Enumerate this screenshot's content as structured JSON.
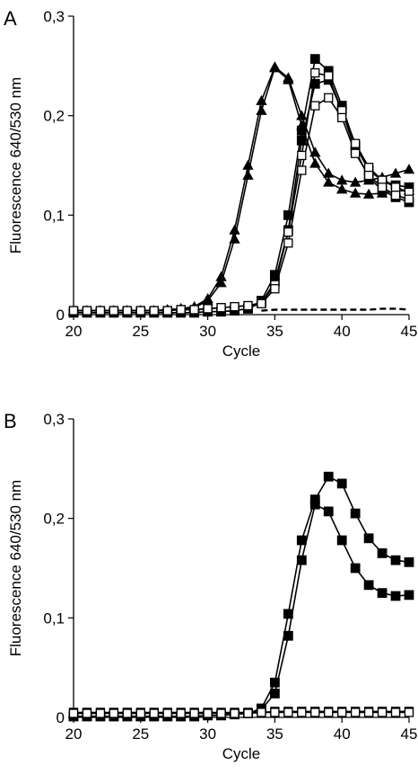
{
  "chart_data": [
    {
      "type": "line",
      "panel_label": "A",
      "xlabel": "Cycle",
      "ylabel": "Fluorescence 640/530 nm",
      "xlim": [
        20,
        45
      ],
      "ylim": [
        0,
        0.3
      ],
      "x_ticks": [
        20,
        25,
        30,
        35,
        40,
        45
      ],
      "x_tick_labels": [
        "20",
        "25",
        "30",
        "35",
        "40",
        "45"
      ],
      "y_ticks": [
        0,
        0.1,
        0.2,
        0.3
      ],
      "y_tick_labels": [
        "0",
        "0,1",
        "0,2",
        "0,3"
      ],
      "grid": false,
      "series": [
        {
          "marker": "triangle-filled",
          "color": "#000000",
          "x": [
            20,
            21,
            22,
            23,
            24,
            25,
            26,
            27,
            28,
            29,
            30,
            31,
            32,
            33,
            34,
            35,
            36,
            37,
            38,
            39,
            40,
            41,
            42,
            43,
            44,
            45
          ],
          "y": [
            0.004,
            0.004,
            0.004,
            0.004,
            0.004,
            0.004,
            0.004,
            0.005,
            0.006,
            0.008,
            0.016,
            0.038,
            0.085,
            0.15,
            0.215,
            0.249,
            0.238,
            0.2,
            0.163,
            0.142,
            0.135,
            0.133,
            0.135,
            0.138,
            0.142,
            0.146
          ]
        },
        {
          "marker": "triangle-filled",
          "color": "#000000",
          "x": [
            20,
            21,
            22,
            23,
            24,
            25,
            26,
            27,
            28,
            29,
            30,
            31,
            32,
            33,
            34,
            35,
            36,
            37,
            38,
            39,
            40,
            41,
            42,
            43,
            44,
            45
          ],
          "y": [
            0.004,
            0.004,
            0.004,
            0.004,
            0.004,
            0.004,
            0.004,
            0.005,
            0.006,
            0.007,
            0.014,
            0.032,
            0.076,
            0.14,
            0.205,
            0.248,
            0.236,
            0.19,
            0.152,
            0.133,
            0.126,
            0.122,
            0.121,
            0.122,
            0.124,
            0.125
          ]
        },
        {
          "marker": "square-filled",
          "color": "#000000",
          "x": [
            20,
            21,
            22,
            23,
            24,
            25,
            26,
            27,
            28,
            29,
            30,
            31,
            32,
            33,
            34,
            35,
            36,
            37,
            38,
            39,
            40,
            41,
            42,
            43,
            44,
            45
          ],
          "y": [
            0.002,
            0.002,
            0.002,
            0.002,
            0.002,
            0.002,
            0.002,
            0.002,
            0.002,
            0.002,
            0.003,
            0.003,
            0.004,
            0.006,
            0.014,
            0.04,
            0.1,
            0.185,
            0.257,
            0.245,
            0.21,
            0.17,
            0.145,
            0.135,
            0.13,
            0.128
          ]
        },
        {
          "marker": "square-filled",
          "color": "#000000",
          "x": [
            20,
            21,
            22,
            23,
            24,
            25,
            26,
            27,
            28,
            29,
            30,
            31,
            32,
            33,
            34,
            35,
            36,
            37,
            38,
            39,
            40,
            41,
            42,
            43,
            44,
            45
          ],
          "y": [
            0.002,
            0.002,
            0.002,
            0.002,
            0.002,
            0.002,
            0.002,
            0.002,
            0.002,
            0.002,
            0.003,
            0.003,
            0.004,
            0.006,
            0.012,
            0.033,
            0.085,
            0.175,
            0.232,
            0.236,
            0.205,
            0.165,
            0.138,
            0.125,
            0.118,
            0.113
          ]
        },
        {
          "marker": "square-open",
          "color": "#000000",
          "x": [
            20,
            21,
            22,
            23,
            24,
            25,
            26,
            27,
            28,
            29,
            30,
            31,
            32,
            33,
            34,
            35,
            36,
            37,
            38,
            39,
            40,
            41,
            42,
            43,
            44,
            45
          ],
          "y": [
            0.004,
            0.004,
            0.004,
            0.004,
            0.004,
            0.004,
            0.004,
            0.004,
            0.005,
            0.005,
            0.006,
            0.007,
            0.008,
            0.009,
            0.012,
            0.03,
            0.083,
            0.16,
            0.243,
            0.24,
            0.205,
            0.172,
            0.148,
            0.135,
            0.128,
            0.123
          ]
        },
        {
          "marker": "square-open",
          "color": "#000000",
          "x": [
            20,
            21,
            22,
            23,
            24,
            25,
            26,
            27,
            28,
            29,
            30,
            31,
            32,
            33,
            34,
            35,
            36,
            37,
            38,
            39,
            40,
            41,
            42,
            43,
            44,
            45
          ],
          "y": [
            0.004,
            0.004,
            0.004,
            0.004,
            0.004,
            0.004,
            0.004,
            0.004,
            0.005,
            0.005,
            0.006,
            0.007,
            0.008,
            0.009,
            0.011,
            0.026,
            0.072,
            0.145,
            0.21,
            0.218,
            0.198,
            0.162,
            0.14,
            0.128,
            0.12,
            0.116
          ]
        },
        {
          "marker": "none",
          "line": "dashed",
          "color": "#000000",
          "x": [
            34,
            35,
            36,
            37,
            38,
            39,
            40,
            41,
            42,
            43,
            44,
            45
          ],
          "y": [
            0.004,
            0.005,
            0.005,
            0.005,
            0.005,
            0.005,
            0.005,
            0.005,
            0.005,
            0.006,
            0.006,
            0.005
          ]
        }
      ]
    },
    {
      "type": "line",
      "panel_label": "B",
      "xlabel": "Cycle",
      "ylabel": "Fluorescence 640/530 nm",
      "xlim": [
        20,
        45
      ],
      "ylim": [
        0,
        0.3
      ],
      "x_ticks": [
        20,
        25,
        30,
        35,
        40,
        45
      ],
      "x_tick_labels": [
        "20",
        "25",
        "30",
        "35",
        "40",
        "45"
      ],
      "y_ticks": [
        0,
        0.1,
        0.2,
        0.3
      ],
      "y_tick_labels": [
        "0",
        "0,1",
        "0,2",
        "0,3"
      ],
      "grid": false,
      "series": [
        {
          "marker": "square-filled",
          "color": "#000000",
          "x": [
            20,
            21,
            22,
            23,
            24,
            25,
            26,
            27,
            28,
            29,
            30,
            31,
            32,
            33,
            34,
            35,
            36,
            37,
            38,
            39,
            40,
            41,
            42,
            43,
            44,
            45
          ],
          "y": [
            0.001,
            0.001,
            0.001,
            0.001,
            0.001,
            0.001,
            0.001,
            0.001,
            0.001,
            0.001,
            0.002,
            0.002,
            0.003,
            0.004,
            0.009,
            0.035,
            0.104,
            0.178,
            0.219,
            0.242,
            0.235,
            0.205,
            0.18,
            0.165,
            0.158,
            0.156
          ]
        },
        {
          "marker": "square-filled",
          "color": "#000000",
          "x": [
            20,
            21,
            22,
            23,
            24,
            25,
            26,
            27,
            28,
            29,
            30,
            31,
            32,
            33,
            34,
            35,
            36,
            37,
            38,
            39,
            40,
            41,
            42,
            43,
            44,
            45
          ],
          "y": [
            0.001,
            0.001,
            0.001,
            0.001,
            0.001,
            0.001,
            0.001,
            0.001,
            0.001,
            0.001,
            0.002,
            0.002,
            0.003,
            0.004,
            0.008,
            0.024,
            0.082,
            0.158,
            0.214,
            0.207,
            0.178,
            0.15,
            0.133,
            0.125,
            0.122,
            0.123
          ]
        },
        {
          "marker": "square-open",
          "color": "#000000",
          "x": [
            20,
            21,
            22,
            23,
            24,
            25,
            26,
            27,
            28,
            29,
            30,
            31,
            32,
            33,
            34,
            35,
            36,
            37,
            38,
            39,
            40,
            41,
            42,
            43,
            44,
            45
          ],
          "y": [
            0.005,
            0.005,
            0.005,
            0.005,
            0.005,
            0.005,
            0.005,
            0.005,
            0.005,
            0.005,
            0.005,
            0.005,
            0.005,
            0.005,
            0.005,
            0.006,
            0.006,
            0.006,
            0.006,
            0.006,
            0.006,
            0.006,
            0.006,
            0.006,
            0.006,
            0.006
          ]
        },
        {
          "marker": "square-open",
          "color": "#000000",
          "x": [
            20,
            21,
            22,
            23,
            24,
            25,
            26,
            27,
            28,
            29,
            30,
            31,
            32,
            33,
            34,
            35,
            36,
            37,
            38,
            39,
            40,
            41,
            42,
            43,
            44,
            45
          ],
          "y": [
            0.004,
            0.004,
            0.004,
            0.004,
            0.004,
            0.004,
            0.004,
            0.004,
            0.004,
            0.004,
            0.004,
            0.004,
            0.004,
            0.004,
            0.005,
            0.005,
            0.005,
            0.005,
            0.005,
            0.005,
            0.005,
            0.005,
            0.005,
            0.005,
            0.005,
            0.005
          ]
        }
      ]
    }
  ]
}
